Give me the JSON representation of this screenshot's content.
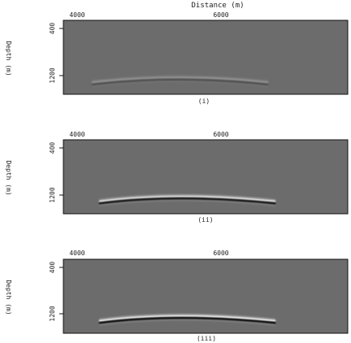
{
  "chart_data": [
    {
      "type": "heatmap",
      "panel_label": "(i)",
      "title": "Distance (m)",
      "xlabel": "Distance (m)",
      "ylabel": "Depth (m)",
      "x_ticks": [
        4000,
        6000
      ],
      "y_ticks": [
        400,
        1200
      ],
      "xlim": [
        3800,
        7700
      ],
      "ylim": [
        1500,
        150
      ],
      "colormap": "gray",
      "background": "#6c6c6c",
      "event": {
        "x_start": 4200,
        "x_peak": 5350,
        "x_end": 6600,
        "depth_edges": 1300,
        "depth_peak": 1210,
        "strength": 0.28
      }
    },
    {
      "type": "heatmap",
      "panel_label": "(ii)",
      "xlabel": "",
      "ylabel": "Depth (m)",
      "x_ticks": [
        4000,
        6000
      ],
      "y_ticks": [
        400,
        1200
      ],
      "xlim": [
        3800,
        7700
      ],
      "ylim": [
        1500,
        150
      ],
      "colormap": "gray",
      "background": "#6c6c6c",
      "event": {
        "x_start": 4300,
        "x_peak": 5350,
        "x_end": 6700,
        "depth_edges": 1290,
        "depth_peak": 1200,
        "strength": 0.9
      }
    },
    {
      "type": "heatmap",
      "panel_label": "(iii)",
      "xlabel": "",
      "ylabel": "Depth (m)",
      "x_ticks": [
        4000,
        6000
      ],
      "y_ticks": [
        400,
        1200
      ],
      "xlim": [
        3800,
        7700
      ],
      "ylim": [
        1500,
        150
      ],
      "colormap": "gray",
      "background": "#6c6c6c",
      "event": {
        "x_start": 4300,
        "x_peak": 5350,
        "x_end": 6700,
        "depth_edges": 1290,
        "depth_peak": 1200,
        "strength": 1.0
      }
    }
  ]
}
